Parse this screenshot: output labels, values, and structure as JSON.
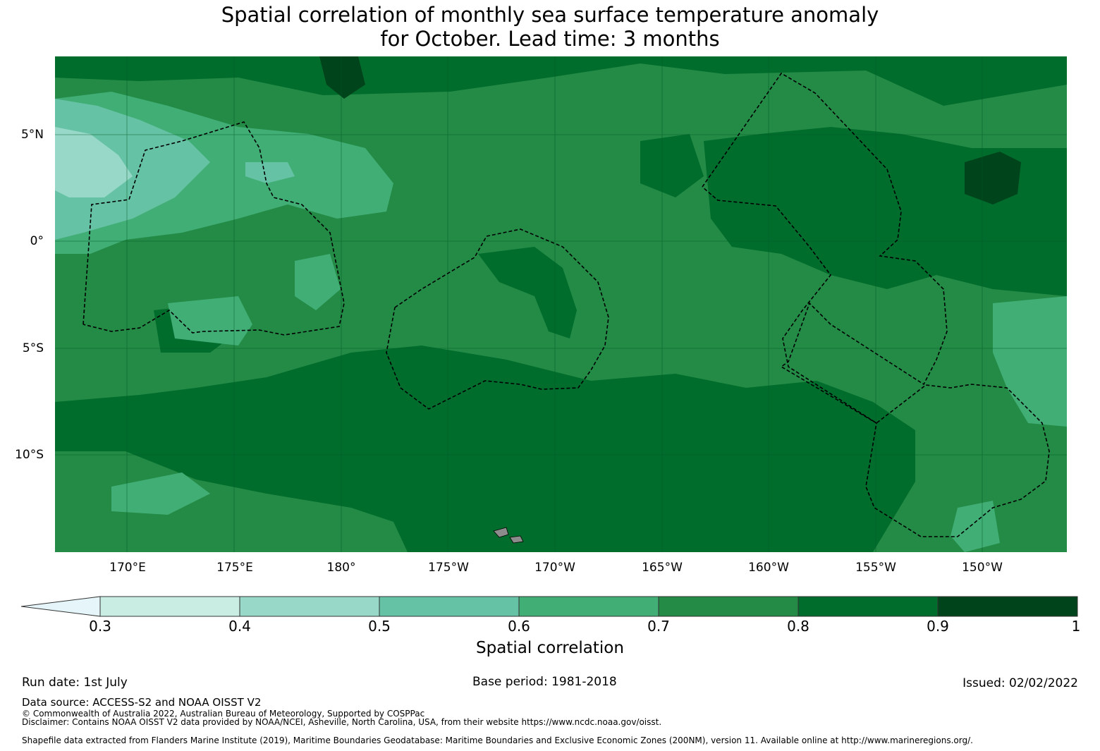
{
  "title": {
    "line1": "Spatial correlation of monthly sea surface temperature anomaly",
    "line2": "for October. Lead time: 3 months"
  },
  "map": {
    "lon_ticks": [
      "170°E",
      "175°E",
      "180°",
      "175°W",
      "170°W",
      "165°W",
      "160°W",
      "155°W",
      "150°W"
    ],
    "lat_ticks": [
      "5°N",
      "0°",
      "5°S",
      "10°S"
    ],
    "colors": {
      "0.3-0.4": "#c9ece3",
      "0.4-0.5": "#98d8c8",
      "0.5-0.6": "#66c2a4",
      "0.6-0.7": "#41ae76",
      "0.7-0.8": "#238b45",
      "0.8-0.9": "#006d2c",
      "0.9-1": "#00441b",
      "below-0.3": "#e5f5f9",
      "land": "#8c8c8c",
      "eez-boundary": "#000000"
    }
  },
  "colorbar": {
    "ticks": [
      "0.3",
      "0.4",
      "0.5",
      "0.6",
      "0.7",
      "0.8",
      "0.9",
      "1"
    ],
    "label": "Spatial correlation"
  },
  "footer": {
    "run_date": "Run date: 1st July",
    "base_period": "Base period: 1981-2018",
    "issued": "Issued: 02/02/2022",
    "data_source": "Data source: ACCESS-S2 and NOAA OISST V2",
    "copyright": "© Commonwealth of Australia 2022, Australian Bureau of Meteorology, Supported by COSPPac",
    "disclaimer": "Disclaimer: Contains NOAA OISST V2 data provided by NOAA/NCEI, Asheville, North Carolina, USA, from their website https://www.ncdc.noaa.gov/oisst.",
    "shapefile": "Shapefile data extracted from Flanders Marine Institute (2019), Maritime Boundaries Geodatabase: Maritime Boundaries and Exclusive Economic Zones (200NM), version 11. Available online at http://www.marineregions.org/."
  }
}
